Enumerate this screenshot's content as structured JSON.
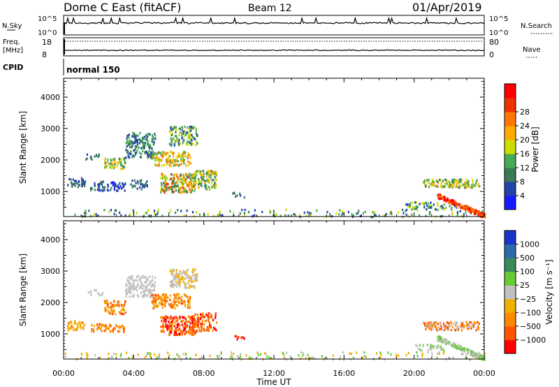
{
  "header": {
    "title": "Dome C East (fitACF)",
    "beam": "Beam 12",
    "date": "01/Apr/2019"
  },
  "top_panels": {
    "nsky_label": "N.Sky",
    "nsky_ticks": [
      "10^5",
      "10^0"
    ],
    "nsearch_label": "N.Search",
    "nsearch_ticks": [
      "10^5",
      "10^0"
    ],
    "freq_label_1": "Freq.",
    "freq_label_2": "[MHz]",
    "freq_ticks": [
      "18",
      "8"
    ],
    "nave_label": "Nave",
    "nave_ticks": [
      "80",
      "0"
    ],
    "cpid_label": "CPID",
    "cpid_value": "normal 150"
  },
  "chart_data": [
    {
      "type": "heatmap",
      "name": "power",
      "ylabel": "Slant Range [km]",
      "yticks": [
        "1000",
        "2000",
        "3000",
        "4000"
      ],
      "ylim": [
        200,
        4600
      ],
      "xlim": [
        0,
        24
      ],
      "colorbar_label": "Power [dB]",
      "colorbar_ticks": [
        "4",
        "8",
        "12",
        "16",
        "20",
        "24",
        "28"
      ],
      "colorbar_colors": [
        "#1a1aff",
        "#2244aa",
        "#3a7a55",
        "#44aa55",
        "#ccdd00",
        "#ffaa00",
        "#ff7700",
        "#ee3300",
        "#ff0000"
      ]
    },
    {
      "type": "heatmap",
      "name": "velocity",
      "ylabel": "Slant Range [km]",
      "yticks": [
        "1000",
        "2000",
        "3000",
        "4000"
      ],
      "ylim": [
        200,
        4600
      ],
      "xlim": [
        0,
        24
      ],
      "xlabel": "Time UT",
      "xticks": [
        "00:00",
        "04:00",
        "08:00",
        "12:00",
        "16:00",
        "20:00",
        "00:00"
      ],
      "colorbar_label": "Velocity [m s⁻¹]",
      "colorbar_ticks": [
        "1000",
        "500",
        "100",
        "25",
        "−25",
        "−100",
        "−500",
        "−1000"
      ],
      "colorbar_colors": [
        "#1a33cc",
        "#2d6aa8",
        "#3a8a5a",
        "#66cc33",
        "#c0c0c0",
        "#f0b000",
        "#ff8800",
        "#ff5500",
        "#ff0000"
      ]
    }
  ]
}
